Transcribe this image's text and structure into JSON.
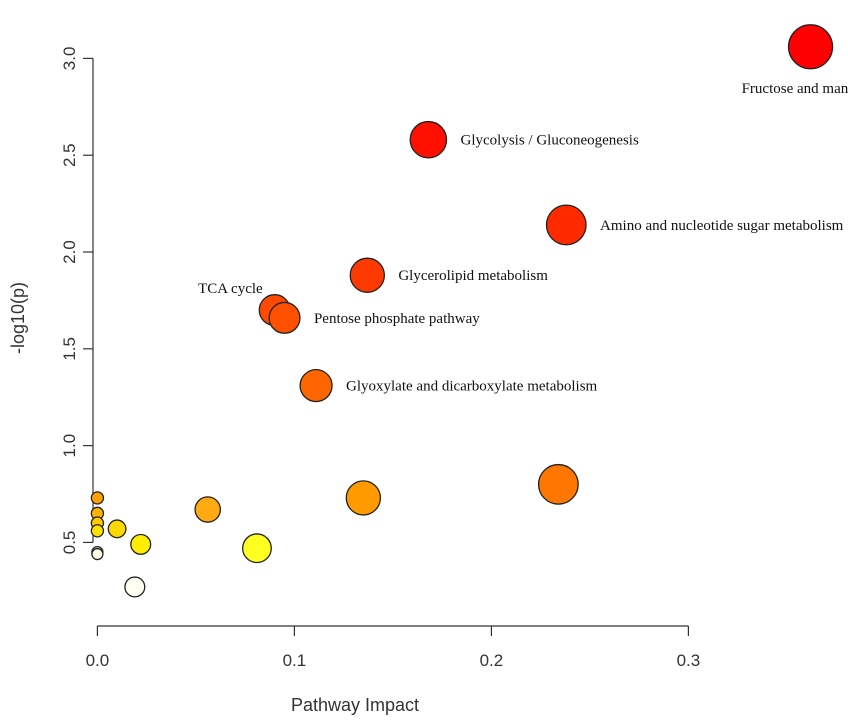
{
  "chart_data": {
    "type": "scatter",
    "title": "",
    "xlabel": "Pathway Impact",
    "ylabel": "-log10(p)",
    "xlim": [
      -0.02,
      0.38
    ],
    "ylim": [
      0.12,
      3.25
    ],
    "x_ticks": [
      0.0,
      0.1,
      0.2,
      0.3
    ],
    "x_tick_labels": [
      "0.0",
      "0.1",
      "0.2",
      "0.3"
    ],
    "y_ticks": [
      0.5,
      1.0,
      1.5,
      2.0,
      2.5,
      3.0
    ],
    "y_tick_labels": [
      "0.5",
      "1.0",
      "1.5",
      "2.0",
      "2.5",
      "3.0"
    ],
    "grid": false,
    "legend": "none",
    "points": [
      {
        "x": 0.362,
        "y": 3.06,
        "size": 4.0,
        "color": "#ff0000",
        "label": "Fructose and mannose metabolism"
      },
      {
        "x": 0.168,
        "y": 2.58,
        "size": 3.3,
        "color": "#ff1000",
        "label": "Glycolysis / Gluconeogenesis"
      },
      {
        "x": 0.238,
        "y": 2.14,
        "size": 3.6,
        "color": "#ff2a00",
        "label": "Amino and nucleotide sugar metabolism"
      },
      {
        "x": 0.137,
        "y": 1.88,
        "size": 3.1,
        "color": "#ff3a00",
        "label": "Glycerolipid  metabolism"
      },
      {
        "x": 0.09,
        "y": 1.7,
        "size": 2.8,
        "color": "#ff4a00",
        "label": "TCA cycle"
      },
      {
        "x": 0.095,
        "y": 1.66,
        "size": 2.8,
        "color": "#ff5000",
        "label": "Pentose phosphate pathway"
      },
      {
        "x": 0.111,
        "y": 1.31,
        "size": 2.9,
        "color": "#ff6600",
        "label": "Glyoxylate  and dicarboxylate metabolism"
      },
      {
        "x": 0.234,
        "y": 0.8,
        "size": 3.6,
        "color": "#ff7700",
        "label": ""
      },
      {
        "x": 0.135,
        "y": 0.73,
        "size": 3.1,
        "color": "#ff9a00",
        "label": ""
      },
      {
        "x": 0.056,
        "y": 0.67,
        "size": 2.3,
        "color": "#ffaa10",
        "label": ""
      },
      {
        "x": 0.0,
        "y": 0.73,
        "size": 1.1,
        "color": "#ff9f00",
        "label": ""
      },
      {
        "x": 0.0,
        "y": 0.65,
        "size": 1.1,
        "color": "#ffb400",
        "label": ""
      },
      {
        "x": 0.0,
        "y": 0.6,
        "size": 1.1,
        "color": "#ffcc00",
        "label": ""
      },
      {
        "x": 0.0,
        "y": 0.56,
        "size": 1.1,
        "color": "#ffe000",
        "label": ""
      },
      {
        "x": 0.01,
        "y": 0.57,
        "size": 1.6,
        "color": "#ffd800",
        "label": ""
      },
      {
        "x": 0.022,
        "y": 0.49,
        "size": 1.8,
        "color": "#ffee00",
        "label": ""
      },
      {
        "x": 0.081,
        "y": 0.47,
        "size": 2.6,
        "color": "#ffff22",
        "label": ""
      },
      {
        "x": 0.0,
        "y": 0.45,
        "size": 1.0,
        "color": "#fffbd0",
        "label": ""
      },
      {
        "x": 0.0,
        "y": 0.44,
        "size": 1.0,
        "color": "#fffde8",
        "label": ""
      },
      {
        "x": 0.019,
        "y": 0.27,
        "size": 1.8,
        "color": "#fffff2",
        "label": ""
      }
    ]
  }
}
